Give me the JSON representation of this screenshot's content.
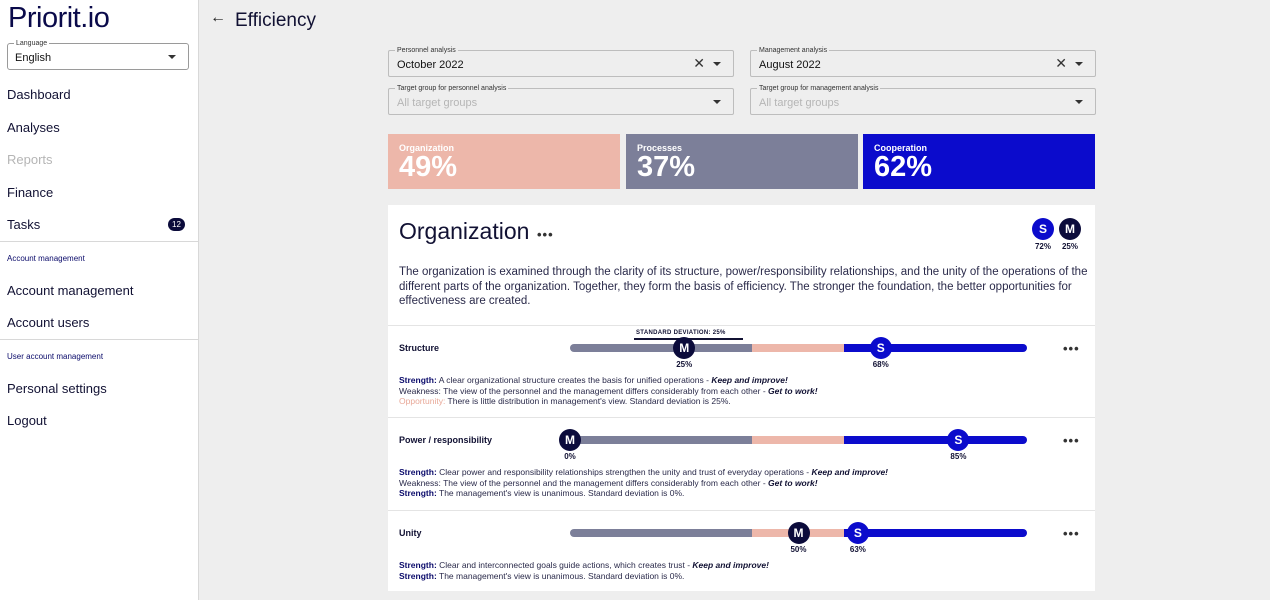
{
  "sidebar": {
    "logo": "Priorit.io",
    "language": {
      "label": "Language",
      "value": "English"
    },
    "nav": {
      "dashboard": "Dashboard",
      "analyses": "Analyses",
      "reports": "Reports",
      "finance": "Finance",
      "tasks": "Tasks",
      "tasks_badge": "12",
      "account_section": "Account management",
      "account_management": "Account management",
      "account_users": "Account users",
      "user_section": "User account management",
      "personal_settings": "Personal settings",
      "logout": "Logout"
    }
  },
  "header": {
    "back_icon": "arrow-left-icon",
    "title": "Efficiency"
  },
  "filters": {
    "personnel_analysis": {
      "label": "Personnel analysis",
      "value": "October 2022"
    },
    "management_analysis": {
      "label": "Management analysis",
      "value": "August 2022"
    },
    "personnel_target": {
      "label": "Target group for personnel analysis",
      "placeholder": "All target groups"
    },
    "management_target": {
      "label": "Target group for management analysis",
      "placeholder": "All target groups"
    }
  },
  "cards": [
    {
      "label": "Organization",
      "value": "49%",
      "color": "#edb7aa"
    },
    {
      "label": "Processes",
      "value": "37%",
      "color": "#7c7f99"
    },
    {
      "label": "Cooperation",
      "value": "62%",
      "color": "#0b0bcc"
    }
  ],
  "panel": {
    "title": "Organization",
    "more": "•••",
    "s_letter": "S",
    "m_letter": "M",
    "s_pct": "72%",
    "m_pct": "25%",
    "description": "The organization is examined through the clarity of its structure, power/responsibility relationships, and the unity of the operations of the different parts of the organization. Together, they form the basis of efficiency. The stronger the foundation, the better opportunities for effectiveness are created.",
    "rows": [
      {
        "label": "Structure",
        "sd_label": "STANDARD DEVIATION: 25%",
        "m": 25,
        "m_text": "25%",
        "s": 68,
        "s_text": "68%",
        "notes": [
          {
            "key": "Strength:",
            "text": "A clear organizational structure creates the basis for unified operations - ",
            "suffix": "Keep and improve!"
          },
          {
            "key": "Weakness:",
            "text": "The view of the personnel and the management differs considerably from each other - ",
            "suffix": "Get to work!"
          },
          {
            "key": "Opportunity:",
            "text": "There is little distribution in management's view. Standard deviation is 25%.",
            "suffix": ""
          }
        ]
      },
      {
        "label": "Power / responsibility",
        "m": 0,
        "m_text": "0%",
        "s": 85,
        "s_text": "85%",
        "notes": [
          {
            "key": "Strength:",
            "text": "Clear power and responsibility relationships strengthen the unity and trust of everyday operations - ",
            "suffix": "Keep and improve!"
          },
          {
            "key": "Weakness:",
            "text": "The view of the personnel and the management differs considerably from each other - ",
            "suffix": "Get to work!"
          },
          {
            "key": "Strength:",
            "text": "The management's view is unanimous. Standard deviation is 0%.",
            "suffix": ""
          }
        ]
      },
      {
        "label": "Unity",
        "m": 50,
        "m_text": "50%",
        "s": 63,
        "s_text": "63%",
        "notes": [
          {
            "key": "Strength:",
            "text": "Clear and interconnected goals guide actions, which creates trust - ",
            "suffix": "Keep and improve!"
          },
          {
            "key": "Strength:",
            "text": "The management's view is unanimous. Standard deviation is 0%.",
            "suffix": ""
          }
        ]
      }
    ]
  },
  "colors": {
    "navy": "#0b0b3b",
    "blue": "#0b0bcc",
    "grey": "#7c7f99",
    "pink": "#edb7aa"
  }
}
